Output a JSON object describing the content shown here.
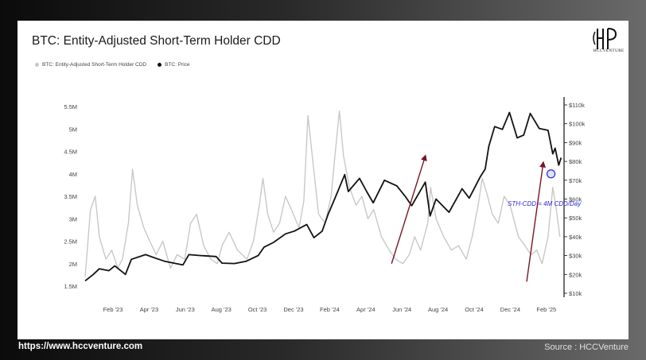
{
  "header": {
    "title": "BTC: Entity-Adjusted Short-Term Holder CDD"
  },
  "logo": {
    "icon": "hccventure-monogram-icon",
    "wordmark": "HCCVENTURE"
  },
  "legend": [
    {
      "label": "BTC: Entity-Adjusted Short-Term Holder CDD",
      "color": "#c8c8c8"
    },
    {
      "label": "BTC: Price",
      "color": "#111111"
    }
  ],
  "annotation": {
    "text": "STH-CDD = 4M CDD/Day",
    "color": "#2b2bd6"
  },
  "footer": {
    "url": "https://www.hccventure.com",
    "source": "Source : HCCVenture"
  },
  "chart_data": {
    "type": "line",
    "title": "BTC: Entity-Adjusted Short-Term Holder CDD",
    "x_tick_labels": [
      "Feb '23",
      "Apr '23",
      "Jun '23",
      "Aug '23",
      "Oct '23",
      "Dec '23",
      "Feb '24",
      "Apr '24",
      "Jun '24",
      "Aug '24",
      "Oct '24",
      "Dec '24",
      "Feb '25"
    ],
    "x_range": [
      "2023-01-01",
      "2025-03-15"
    ],
    "y_left": {
      "min": 1500000,
      "max": 5500000,
      "tick_values": [
        1500000,
        2000000,
        2500000,
        3000000,
        3500000,
        4000000,
        4500000,
        5000000,
        5500000
      ],
      "tick_labels": [
        "1.5M",
        "2M",
        "2.5M",
        "3M",
        "3.5M",
        "4M",
        "4.5M",
        "5M",
        "5.5M"
      ]
    },
    "y_right": {
      "min": 10000,
      "max": 110000,
      "tick_values": [
        10000,
        20000,
        30000,
        40000,
        50000,
        60000,
        70000,
        80000,
        90000,
        100000,
        110000
      ],
      "tick_labels": [
        "$10k",
        "$20k",
        "$30k",
        "$40k",
        "$50k",
        "$60k",
        "$70k",
        "$80k",
        "$90k",
        "$100k",
        "$110k"
      ]
    },
    "grid": false,
    "legend_position": "top-left",
    "series": [
      {
        "name": "BTC: Entity-Adjusted Short-Term Holder CDD",
        "axis": "left",
        "color": "#c8c8c8",
        "points": [
          [
            "2023-01-01",
            1700000
          ],
          [
            "2023-01-10",
            3200000
          ],
          [
            "2023-01-18",
            3500000
          ],
          [
            "2023-01-25",
            2600000
          ],
          [
            "2023-02-05",
            2100000
          ],
          [
            "2023-02-15",
            2300000
          ],
          [
            "2023-02-25",
            1900000
          ],
          [
            "2023-03-05",
            2100000
          ],
          [
            "2023-03-15",
            2900000
          ],
          [
            "2023-03-22",
            4100000
          ],
          [
            "2023-03-30",
            3300000
          ],
          [
            "2023-04-10",
            2800000
          ],
          [
            "2023-04-20",
            2500000
          ],
          [
            "2023-05-01",
            2200000
          ],
          [
            "2023-05-12",
            2500000
          ],
          [
            "2023-05-25",
            1900000
          ],
          [
            "2023-06-05",
            2200000
          ],
          [
            "2023-06-18",
            2100000
          ],
          [
            "2023-06-28",
            2900000
          ],
          [
            "2023-07-08",
            3100000
          ],
          [
            "2023-07-20",
            2400000
          ],
          [
            "2023-08-01",
            2100000
          ],
          [
            "2023-08-12",
            2000000
          ],
          [
            "2023-08-20",
            2400000
          ],
          [
            "2023-09-01",
            2700000
          ],
          [
            "2023-09-15",
            2300000
          ],
          [
            "2023-10-01",
            2100000
          ],
          [
            "2023-10-12",
            2500000
          ],
          [
            "2023-10-22",
            3300000
          ],
          [
            "2023-10-28",
            3900000
          ],
          [
            "2023-11-05",
            3100000
          ],
          [
            "2023-11-15",
            2700000
          ],
          [
            "2023-11-25",
            2900000
          ],
          [
            "2023-12-05",
            3500000
          ],
          [
            "2023-12-15",
            3200000
          ],
          [
            "2023-12-28",
            2800000
          ],
          [
            "2024-01-05",
            3400000
          ],
          [
            "2024-01-12",
            5300000
          ],
          [
            "2024-01-20",
            4300000
          ],
          [
            "2024-01-30",
            3100000
          ],
          [
            "2024-02-10",
            2900000
          ],
          [
            "2024-02-20",
            3500000
          ],
          [
            "2024-02-28",
            4600000
          ],
          [
            "2024-03-05",
            5400000
          ],
          [
            "2024-03-12",
            4400000
          ],
          [
            "2024-03-22",
            3700000
          ],
          [
            "2024-04-02",
            3300000
          ],
          [
            "2024-04-12",
            3500000
          ],
          [
            "2024-04-22",
            3000000
          ],
          [
            "2024-05-02",
            3200000
          ],
          [
            "2024-05-15",
            2600000
          ],
          [
            "2024-05-28",
            2300000
          ],
          [
            "2024-06-08",
            2100000
          ],
          [
            "2024-06-20",
            2000000
          ],
          [
            "2024-07-01",
            2200000
          ],
          [
            "2024-07-10",
            2600000
          ],
          [
            "2024-07-20",
            2300000
          ],
          [
            "2024-08-01",
            2900000
          ],
          [
            "2024-08-06",
            3700000
          ],
          [
            "2024-08-15",
            3000000
          ],
          [
            "2024-08-28",
            2600000
          ],
          [
            "2024-09-10",
            2300000
          ],
          [
            "2024-09-22",
            2400000
          ],
          [
            "2024-10-05",
            2100000
          ],
          [
            "2024-10-15",
            2600000
          ],
          [
            "2024-10-25",
            3300000
          ],
          [
            "2024-11-01",
            3900000
          ],
          [
            "2024-11-08",
            3600000
          ],
          [
            "2024-11-18",
            3100000
          ],
          [
            "2024-11-28",
            2900000
          ],
          [
            "2024-12-08",
            3500000
          ],
          [
            "2024-12-18",
            3300000
          ],
          [
            "2025-01-01",
            2600000
          ],
          [
            "2025-01-12",
            2400000
          ],
          [
            "2025-01-22",
            2200000
          ],
          [
            "2025-02-01",
            2300000
          ],
          [
            "2025-02-10",
            2000000
          ],
          [
            "2025-02-20",
            2600000
          ],
          [
            "2025-02-28",
            3700000
          ],
          [
            "2025-03-05",
            3300000
          ],
          [
            "2025-03-12",
            2600000
          ]
        ]
      },
      {
        "name": "BTC: Price",
        "axis": "right",
        "color": "#111111",
        "points": [
          [
            "2023-01-01",
            16600
          ],
          [
            "2023-01-14",
            19800
          ],
          [
            "2023-01-25",
            23000
          ],
          [
            "2023-02-10",
            22000
          ],
          [
            "2023-02-20",
            24500
          ],
          [
            "2023-03-10",
            20000
          ],
          [
            "2023-03-20",
            28000
          ],
          [
            "2023-04-13",
            30500
          ],
          [
            "2023-05-01",
            28500
          ],
          [
            "2023-05-15",
            27000
          ],
          [
            "2023-06-15",
            25000
          ],
          [
            "2023-06-25",
            30500
          ],
          [
            "2023-07-15",
            30000
          ],
          [
            "2023-08-10",
            29500
          ],
          [
            "2023-08-20",
            26000
          ],
          [
            "2023-09-10",
            25800
          ],
          [
            "2023-09-30",
            27000
          ],
          [
            "2023-10-20",
            30000
          ],
          [
            "2023-10-30",
            34500
          ],
          [
            "2023-11-15",
            37000
          ],
          [
            "2023-12-05",
            41500
          ],
          [
            "2023-12-20",
            43000
          ],
          [
            "2024-01-10",
            46500
          ],
          [
            "2024-01-22",
            39500
          ],
          [
            "2024-02-05",
            43000
          ],
          [
            "2024-02-15",
            52000
          ],
          [
            "2024-02-28",
            61500
          ],
          [
            "2024-03-14",
            73000
          ],
          [
            "2024-03-20",
            64000
          ],
          [
            "2024-04-08",
            71000
          ],
          [
            "2024-04-20",
            64000
          ],
          [
            "2024-05-01",
            58000
          ],
          [
            "2024-05-20",
            70000
          ],
          [
            "2024-06-10",
            67000
          ],
          [
            "2024-06-25",
            61000
          ],
          [
            "2024-07-05",
            56500
          ],
          [
            "2024-07-28",
            69000
          ],
          [
            "2024-08-05",
            51000
          ],
          [
            "2024-08-15",
            60000
          ],
          [
            "2024-09-06",
            53000
          ],
          [
            "2024-09-28",
            65500
          ],
          [
            "2024-10-10",
            60500
          ],
          [
            "2024-10-29",
            72000
          ],
          [
            "2024-11-06",
            76000
          ],
          [
            "2024-11-12",
            88000
          ],
          [
            "2024-11-22",
            98500
          ],
          [
            "2024-12-05",
            97000
          ],
          [
            "2024-12-17",
            106000
          ],
          [
            "2024-12-30",
            92500
          ],
          [
            "2025-01-10",
            94000
          ],
          [
            "2025-01-21",
            105500
          ],
          [
            "2025-02-05",
            97500
          ],
          [
            "2025-02-20",
            96500
          ],
          [
            "2025-02-28",
            84000
          ],
          [
            "2025-03-04",
            87000
          ],
          [
            "2025-03-10",
            78000
          ],
          [
            "2025-03-14",
            82000
          ]
        ]
      }
    ],
    "annotations": [
      {
        "type": "arrow",
        "color": "#7b1424",
        "from": [
          "2024-06-01",
          2000000
        ],
        "to": [
          "2024-07-28",
          4400000
        ]
      },
      {
        "type": "arrow",
        "color": "#7b1424",
        "from": [
          "2025-01-15",
          1600000
        ],
        "to": [
          "2025-02-12",
          4250000
        ]
      },
      {
        "type": "circle",
        "color": "#2b2bd6",
        "at": [
          "2025-02-25",
          4000000
        ]
      }
    ]
  }
}
